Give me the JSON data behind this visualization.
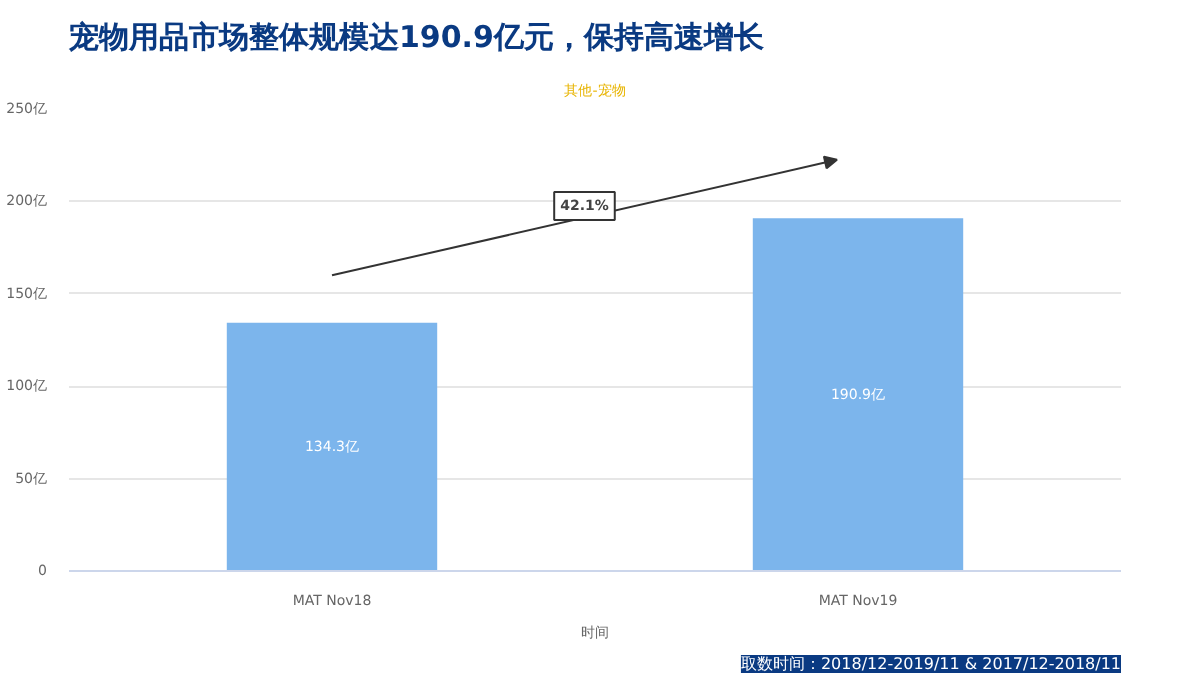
{
  "chart_data": {
    "type": "bar",
    "title": "宠物用品市场整体规模达190.9亿元，保持高速增长",
    "subtitle": "其他-宠物",
    "xlabel": "时间",
    "categories": [
      "MAT Nov18",
      "MAT Nov19"
    ],
    "values": [
      134.3,
      190.9
    ],
    "color": "#7cb5ec",
    "value_labels": [
      "134.3亿",
      "190.9亿"
    ],
    "ylim": [
      0,
      250
    ],
    "yticks": [
      {
        "value": 0,
        "label": "0"
      },
      {
        "value": 50,
        "label": "50亿"
      },
      {
        "value": 100,
        "label": "100亿"
      },
      {
        "value": 150,
        "label": "150亿"
      },
      {
        "value": 200,
        "label": "200亿"
      },
      {
        "value": 250,
        "label": "250亿"
      }
    ],
    "grid": "y",
    "annotations": [
      "42.1%",
      "取数时间：2018/12-2019/11 & 2017/12-2018/11"
    ]
  }
}
